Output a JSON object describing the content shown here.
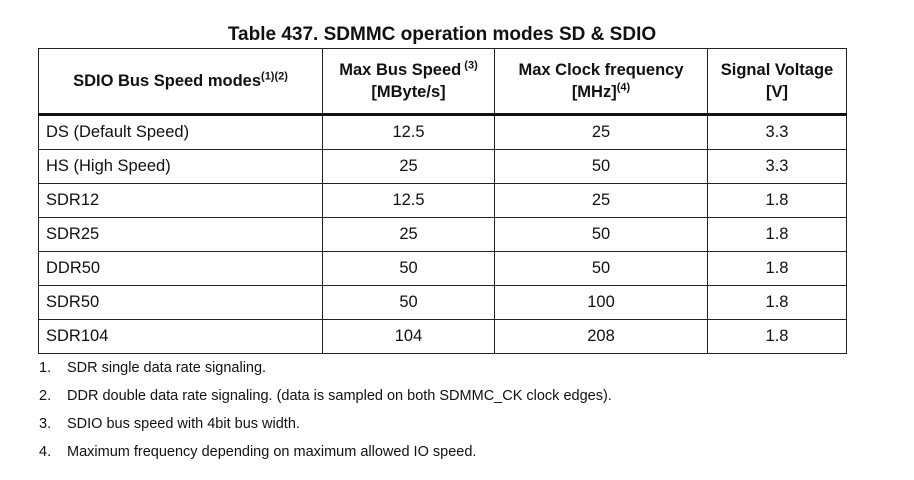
{
  "title": "Table 437. SDMMC operation modes SD & SDIO",
  "headers": {
    "mode": "SDIO Bus Speed modes",
    "mode_sup": "(1)(2)",
    "speed_l1": "Max Bus Speed",
    "speed_sup": " (3)",
    "speed_l2": "[MByte/s]",
    "clock_l1": "Max Clock frequency",
    "clock_l2": "[MHz]",
    "clock_sup": "(4)",
    "volt_l1": "Signal Voltage",
    "volt_l2": "[V]"
  },
  "rows": [
    {
      "mode": "DS (Default Speed)",
      "speed": "12.5",
      "clock": "25",
      "volt": "3.3"
    },
    {
      "mode": "HS (High Speed)",
      "speed": "25",
      "clock": "50",
      "volt": "3.3"
    },
    {
      "mode": "SDR12",
      "speed": "12.5",
      "clock": "25",
      "volt": "1.8"
    },
    {
      "mode": "SDR25",
      "speed": "25",
      "clock": "50",
      "volt": "1.8"
    },
    {
      "mode": "DDR50",
      "speed": "50",
      "clock": "50",
      "volt": "1.8"
    },
    {
      "mode": "SDR50",
      "speed": "50",
      "clock": "100",
      "volt": "1.8"
    },
    {
      "mode": "SDR104",
      "speed": "104",
      "clock": "208",
      "volt": "1.8"
    }
  ],
  "notes": [
    {
      "num": "1.",
      "text": "SDR single data rate signaling."
    },
    {
      "num": "2.",
      "text": "DDR double data rate signaling. (data is sampled on both SDMMC_CK clock edges)."
    },
    {
      "num": "3.",
      "text": "SDIO bus speed with 4bit bus width."
    },
    {
      "num": "4.",
      "text": "Maximum frequency depending on maximum allowed IO speed."
    }
  ]
}
